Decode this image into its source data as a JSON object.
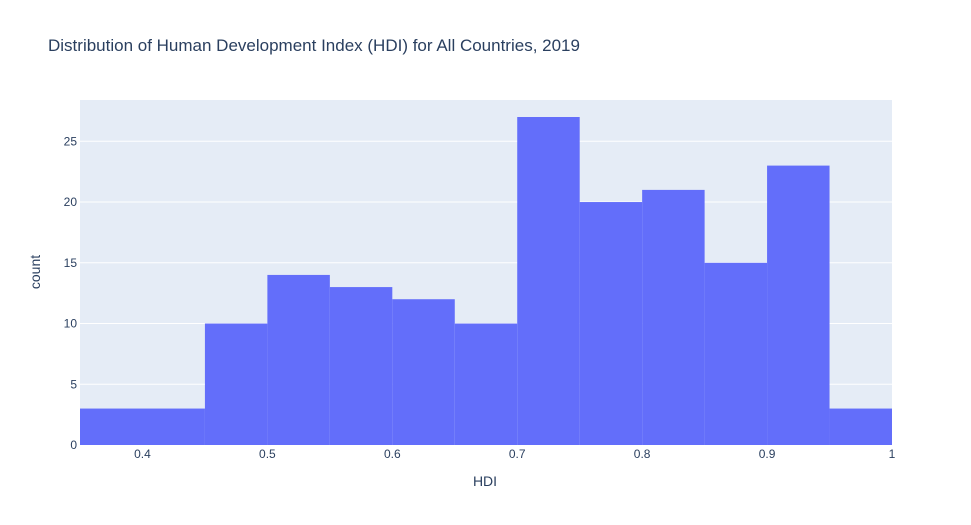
{
  "chart_data": {
    "type": "bar",
    "title": "Distribution of Human Development Index (HDI) for All Countries, 2019",
    "xlabel": "HDI",
    "ylabel": "count",
    "xlim": [
      0.35,
      1.0
    ],
    "ylim": [
      0,
      28.4
    ],
    "xticks": [
      0.4,
      0.5,
      0.6,
      0.7,
      0.8,
      0.9,
      1
    ],
    "xtick_labels": [
      "0.4",
      "0.5",
      "0.6",
      "0.7",
      "0.8",
      "0.9",
      "1"
    ],
    "yticks": [
      0,
      5,
      10,
      15,
      20,
      25
    ],
    "ytick_labels": [
      "0",
      "5",
      "10",
      "15",
      "20",
      "25"
    ],
    "grid": true,
    "bar_color": "#636efa",
    "plot_background": "#e5ecf6",
    "bins": [
      {
        "x0": 0.35,
        "x1": 0.45,
        "count": 3
      },
      {
        "x0": 0.45,
        "x1": 0.5,
        "count": 10
      },
      {
        "x0": 0.5,
        "x1": 0.55,
        "count": 14
      },
      {
        "x0": 0.55,
        "x1": 0.6,
        "count": 13
      },
      {
        "x0": 0.6,
        "x1": 0.65,
        "count": 12
      },
      {
        "x0": 0.65,
        "x1": 0.7,
        "count": 10
      },
      {
        "x0": 0.7,
        "x1": 0.75,
        "count": 27
      },
      {
        "x0": 0.75,
        "x1": 0.8,
        "count": 20
      },
      {
        "x0": 0.8,
        "x1": 0.85,
        "count": 21
      },
      {
        "x0": 0.85,
        "x1": 0.9,
        "count": 15
      },
      {
        "x0": 0.9,
        "x1": 0.95,
        "count": 23
      },
      {
        "x0": 0.95,
        "x1": 1.0,
        "count": 3
      }
    ]
  }
}
